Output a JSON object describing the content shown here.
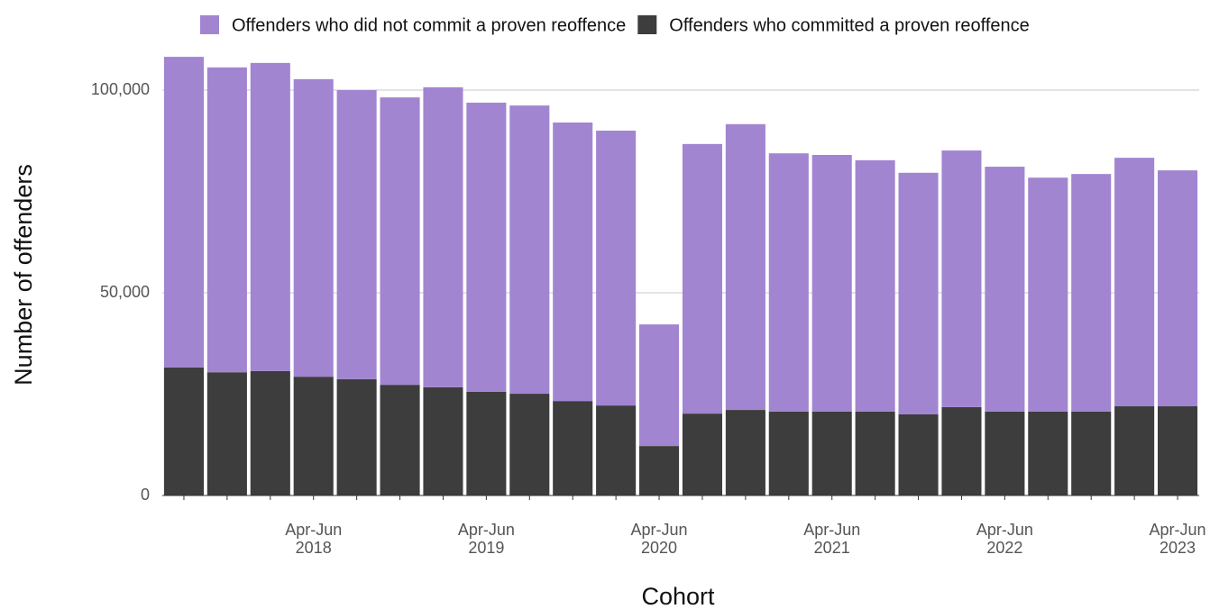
{
  "chart_data": {
    "type": "stacked-bar",
    "x_label": "Cohort",
    "y_label": "Number of offenders",
    "categories": [
      null,
      null,
      null,
      "Apr-Jun\n2018",
      null,
      null,
      null,
      "Apr-Jun\n2019",
      null,
      null,
      null,
      "Apr-Jun\n2020",
      null,
      null,
      null,
      "Apr-Jun\n2021",
      null,
      null,
      null,
      "Apr-Jun\n2022",
      null,
      null,
      null,
      "Apr-Jun\n2023"
    ],
    "series": [
      {
        "name": "Offenders who did not commit a proven reoffence",
        "color": "#a285d1",
        "values": [
          76600,
          75200,
          76000,
          73400,
          71300,
          70900,
          74000,
          71300,
          71100,
          68700,
          67800,
          30000,
          66500,
          70500,
          63700,
          63300,
          62000,
          59600,
          63300,
          60400,
          57700,
          58600,
          61300,
          58200
        ]
      },
      {
        "name": "Offenders who committed a proven reoffence",
        "color": "#3d3d3d",
        "values": [
          31600,
          30400,
          30700,
          29300,
          28700,
          27300,
          26700,
          25600,
          25100,
          23300,
          22200,
          12200,
          20200,
          21100,
          20700,
          20700,
          20700,
          20000,
          21800,
          20700,
          20700,
          20700,
          22000,
          22000
        ]
      }
    ],
    "ylim": [
      0,
      110000
    ],
    "yticks": [
      0,
      {
        "value": 50000,
        "label": "50,000"
      },
      {
        "value": 100000,
        "label": "100,000"
      }
    ],
    "grid": true,
    "legend": "top"
  }
}
